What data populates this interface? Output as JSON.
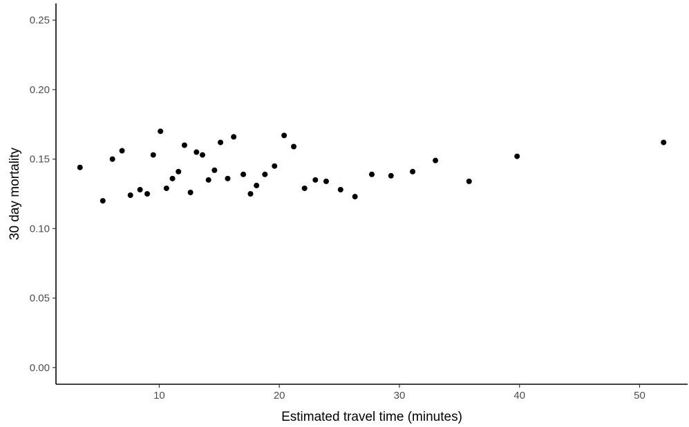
{
  "chart_data": {
    "type": "scatter",
    "title": "",
    "xlabel": "Estimated travel time (minutes)",
    "ylabel": "30 day mortality",
    "xlim": [
      1.4,
      54.0
    ],
    "ylim": [
      -0.012,
      0.262
    ],
    "x_ticks": [
      10,
      20,
      30,
      40,
      50
    ],
    "x_tick_labels": [
      "10",
      "20",
      "30",
      "40",
      "50"
    ],
    "y_ticks": [
      0.0,
      0.05,
      0.1,
      0.15,
      0.2,
      0.25
    ],
    "y_tick_labels": [
      "0.00",
      "0.05",
      "0.10",
      "0.15",
      "0.20",
      "0.25"
    ],
    "grid": false,
    "legend": "none",
    "point_color": "#000000",
    "points": [
      {
        "x": 3.4,
        "y": 0.144
      },
      {
        "x": 5.3,
        "y": 0.12
      },
      {
        "x": 6.1,
        "y": 0.15
      },
      {
        "x": 6.9,
        "y": 0.156
      },
      {
        "x": 7.6,
        "y": 0.124
      },
      {
        "x": 8.4,
        "y": 0.128
      },
      {
        "x": 9.0,
        "y": 0.125
      },
      {
        "x": 9.5,
        "y": 0.153
      },
      {
        "x": 10.1,
        "y": 0.17
      },
      {
        "x": 10.6,
        "y": 0.129
      },
      {
        "x": 11.1,
        "y": 0.136
      },
      {
        "x": 11.6,
        "y": 0.141
      },
      {
        "x": 12.1,
        "y": 0.16
      },
      {
        "x": 12.6,
        "y": 0.126
      },
      {
        "x": 13.1,
        "y": 0.155
      },
      {
        "x": 13.6,
        "y": 0.153
      },
      {
        "x": 14.1,
        "y": 0.135
      },
      {
        "x": 14.6,
        "y": 0.142
      },
      {
        "x": 15.1,
        "y": 0.162
      },
      {
        "x": 15.7,
        "y": 0.136
      },
      {
        "x": 16.2,
        "y": 0.166
      },
      {
        "x": 17.0,
        "y": 0.139
      },
      {
        "x": 17.6,
        "y": 0.125
      },
      {
        "x": 18.1,
        "y": 0.131
      },
      {
        "x": 18.8,
        "y": 0.139
      },
      {
        "x": 19.6,
        "y": 0.145
      },
      {
        "x": 20.4,
        "y": 0.167
      },
      {
        "x": 21.2,
        "y": 0.159
      },
      {
        "x": 22.1,
        "y": 0.129
      },
      {
        "x": 23.0,
        "y": 0.135
      },
      {
        "x": 23.9,
        "y": 0.134
      },
      {
        "x": 25.1,
        "y": 0.128
      },
      {
        "x": 26.3,
        "y": 0.123
      },
      {
        "x": 27.7,
        "y": 0.139
      },
      {
        "x": 29.3,
        "y": 0.138
      },
      {
        "x": 31.1,
        "y": 0.141
      },
      {
        "x": 33.0,
        "y": 0.149
      },
      {
        "x": 35.8,
        "y": 0.134
      },
      {
        "x": 39.8,
        "y": 0.152
      },
      {
        "x": 52.0,
        "y": 0.162
      }
    ]
  }
}
